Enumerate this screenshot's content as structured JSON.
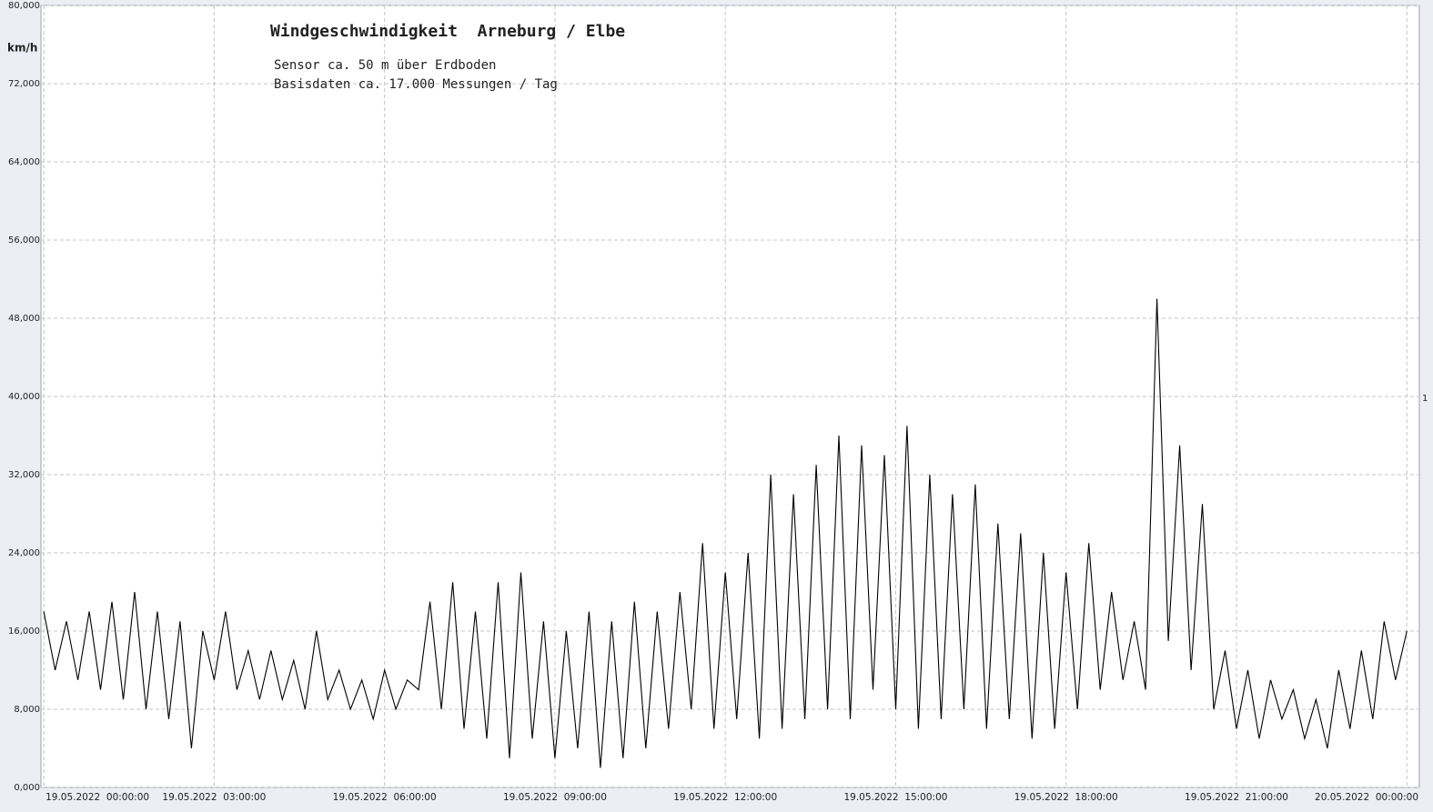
{
  "chart_data": {
    "type": "line",
    "title": "Windgeschwindigkeit  Arneburg / Elbe",
    "subtitle": [
      "Sensor ca. 50 m über Erdboden",
      "Basisdaten ca. 17.000 Messungen / Tag"
    ],
    "y_label": "km/h",
    "annotation": "1",
    "x": [
      0,
      0.2,
      0.4,
      0.6,
      0.8,
      1,
      1.2,
      1.4,
      1.6,
      1.8,
      2,
      2.2,
      2.4,
      2.6,
      2.8,
      3,
      3.2,
      3.4,
      3.6,
      3.8,
      4,
      4.2,
      4.4,
      4.6,
      4.8,
      5,
      5.2,
      5.4,
      5.6,
      5.8,
      6,
      6.2,
      6.4,
      6.6,
      6.8,
      7,
      7.2,
      7.4,
      7.6,
      7.8,
      8,
      8.2,
      8.4,
      8.6,
      8.8,
      9,
      9.2,
      9.4,
      9.6,
      9.8,
      10,
      10.2,
      10.4,
      10.6,
      10.8,
      11,
      11.2,
      11.4,
      11.6,
      11.8,
      12,
      12.2,
      12.4,
      12.6,
      12.8,
      13,
      13.2,
      13.4,
      13.6,
      13.8,
      14,
      14.2,
      14.4,
      14.6,
      14.8,
      15,
      15.2,
      15.4,
      15.6,
      15.8,
      16,
      16.2,
      16.4,
      16.6,
      16.8,
      17,
      17.2,
      17.4,
      17.6,
      17.8,
      18,
      18.2,
      18.4,
      18.6,
      18.8,
      19,
      19.2,
      19.4,
      19.6,
      19.8,
      20,
      20.2,
      20.4,
      20.6,
      20.8,
      21,
      21.2,
      21.4,
      21.6,
      21.8,
      22,
      22.2,
      22.4,
      22.6,
      22.8,
      23,
      23.2,
      23.4,
      23.6,
      23.8,
      24
    ],
    "series": [
      {
        "name": "Windgeschwindigkeit",
        "color": "#000000",
        "values": [
          18,
          12,
          17,
          11,
          18,
          10,
          19,
          9,
          20,
          8,
          18,
          7,
          17,
          4,
          16,
          11,
          18,
          10,
          14,
          9,
          14,
          9,
          13,
          8,
          16,
          9,
          12,
          8,
          11,
          7,
          12,
          8,
          11,
          10,
          19,
          8,
          21,
          6,
          18,
          5,
          21,
          3,
          22,
          5,
          17,
          3,
          16,
          4,
          18,
          2,
          17,
          3,
          19,
          4,
          18,
          6,
          20,
          8,
          25,
          6,
          22,
          7,
          24,
          5,
          32,
          6,
          30,
          7,
          33,
          8,
          36,
          7,
          35,
          10,
          34,
          8,
          37,
          6,
          32,
          7,
          30,
          8,
          31,
          6,
          27,
          7,
          26,
          5,
          24,
          6,
          22,
          8,
          25,
          10,
          20,
          11,
          17,
          10,
          50,
          15,
          35,
          12,
          29,
          8,
          14,
          6,
          12,
          5,
          11,
          7,
          10,
          5,
          9,
          4,
          12,
          6,
          14,
          7,
          17,
          11,
          16
        ]
      }
    ],
    "xlim": [
      -0.05,
      24.22
    ],
    "ylim": [
      0,
      80
    ],
    "xticks": [
      {
        "value": 0,
        "label": "19.05.2022  00:00:00"
      },
      {
        "value": 3,
        "label": "19.05.2022  03:00:00"
      },
      {
        "value": 6,
        "label": "19.05.2022  06:00:00"
      },
      {
        "value": 9,
        "label": "19.05.2022  09:00:00"
      },
      {
        "value": 12,
        "label": "19.05.2022  12:00:00"
      },
      {
        "value": 15,
        "label": "19.05.2022  15:00:00"
      },
      {
        "value": 18,
        "label": "19.05.2022  18:00:00"
      },
      {
        "value": 21,
        "label": "19.05.2022  21:00:00"
      },
      {
        "value": 24,
        "label": "20.05.2022  00:00:00"
      }
    ],
    "yticks": [
      {
        "value": 0,
        "label": "0,000"
      },
      {
        "value": 8,
        "label": "8,000"
      },
      {
        "value": 16,
        "label": "16,000"
      },
      {
        "value": 24,
        "label": "24,000"
      },
      {
        "value": 32,
        "label": "32,000"
      },
      {
        "value": 40,
        "label": "40,000"
      },
      {
        "value": 48,
        "label": "48,000"
      },
      {
        "value": 56,
        "label": "56,000"
      },
      {
        "value": 64,
        "label": "64,000"
      },
      {
        "value": 72,
        "label": "72,000"
      },
      {
        "value": 80,
        "label": "80,000"
      }
    ],
    "grid": true
  }
}
